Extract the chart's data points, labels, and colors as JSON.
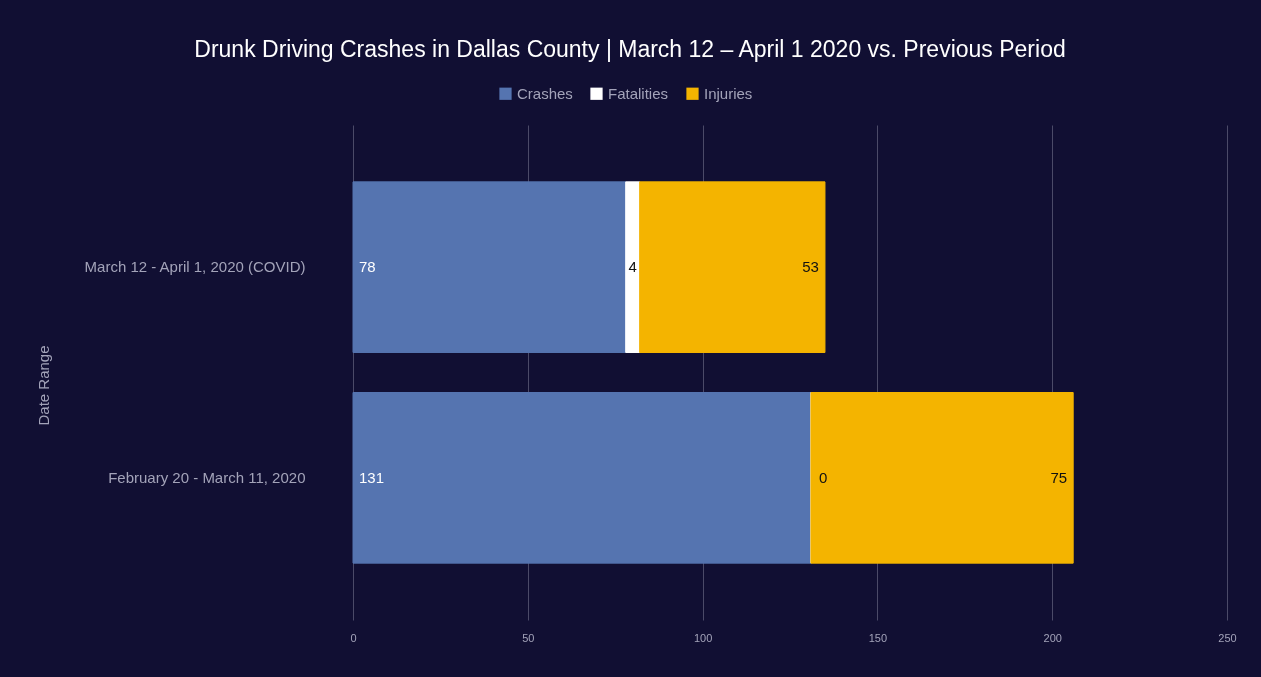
{
  "chart_data": {
    "type": "bar",
    "orientation": "horizontal",
    "stacked": true,
    "title": "Drunk Driving Crashes in Dallas County | March 12 – April 1 2020 vs. Previous Period",
    "ylabel": "Date Range",
    "categories": [
      "March 12 - April 1, 2020 (COVID)",
      "February 20 - March 11, 2020"
    ],
    "series": [
      {
        "name": "Crashes",
        "color": "#5574b0",
        "values": [
          78,
          131
        ]
      },
      {
        "name": "Fatalities",
        "color": "#ffffff",
        "values": [
          4,
          0
        ]
      },
      {
        "name": "Injuries",
        "color": "#f4b400",
        "values": [
          53,
          75
        ]
      }
    ],
    "xlim": [
      0,
      250
    ],
    "xticks": [
      0,
      50,
      100,
      150,
      200,
      250
    ],
    "grid": "x",
    "legend": "top",
    "data_labels": true
  }
}
